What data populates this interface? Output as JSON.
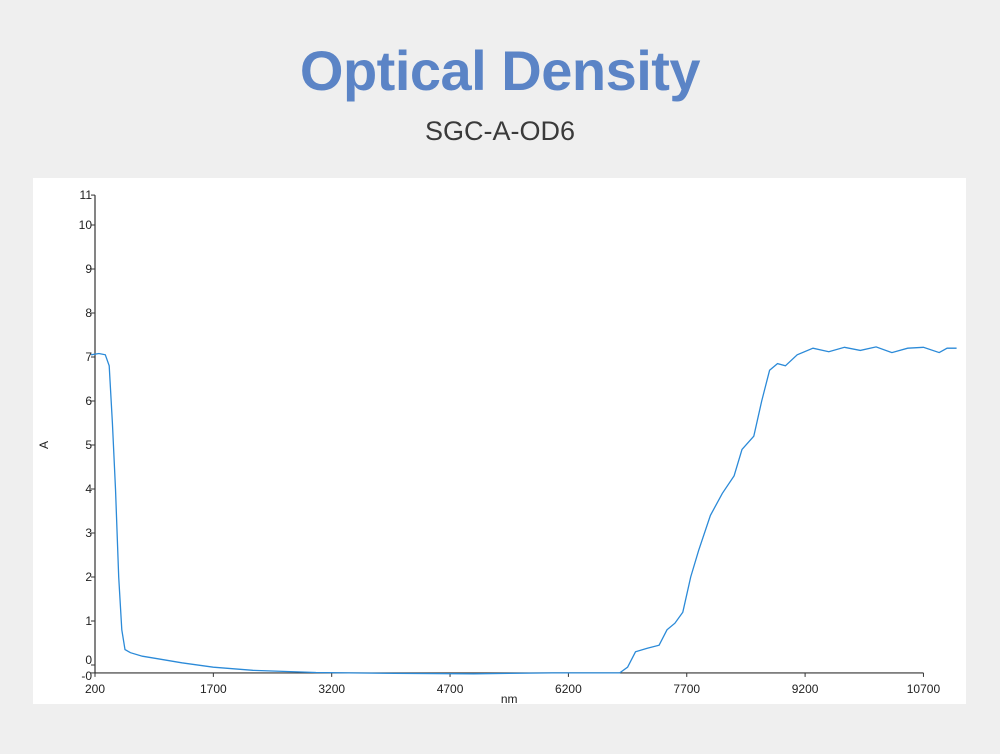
{
  "title": "Optical Density",
  "subtitle": "SGC-A-OD6",
  "chart_data": {
    "type": "line",
    "title": "",
    "xlabel": "nm",
    "ylabel": "A",
    "xlim": [
      200,
      10700
    ],
    "ylim": [
      -0.18,
      10.68
    ],
    "grid": false,
    "line_color": "#2b8ad8",
    "x_ticks": [
      200,
      1700,
      3200,
      4700,
      6200,
      7700,
      9200,
      10700
    ],
    "y_ticks": [
      {
        "label": "11",
        "value": 10.68
      },
      {
        "label": "10",
        "value": 10
      },
      {
        "label": "9",
        "value": 9
      },
      {
        "label": "8",
        "value": 8
      },
      {
        "label": "7",
        "value": 7
      },
      {
        "label": "6",
        "value": 6
      },
      {
        "label": "5",
        "value": 5
      },
      {
        "label": "4",
        "value": 4
      },
      {
        "label": "3",
        "value": 3
      },
      {
        "label": "2",
        "value": 2
      },
      {
        "label": "1",
        "value": 1
      },
      {
        "label": "0",
        "value": 0
      },
      {
        "label": "-0",
        "value": -0.18
      }
    ],
    "series": [
      {
        "x": [
          150,
          250,
          330,
          380,
          420,
          460,
          500,
          540,
          580,
          650,
          800,
          1000,
          1300,
          1700,
          2200,
          3000,
          4000,
          5000,
          6000,
          6850,
          6950,
          7050,
          7200,
          7350,
          7450,
          7550,
          7650,
          7750,
          7850,
          8000,
          8150,
          8300,
          8400,
          8550,
          8650,
          8750,
          8850,
          8950,
          9100,
          9300,
          9500,
          9700,
          9900,
          10100,
          10300,
          10500,
          10700,
          10900,
          11000,
          11120
        ],
        "y": [
          7.05,
          7.08,
          7.05,
          6.8,
          5.5,
          4.0,
          2.0,
          0.8,
          0.35,
          0.28,
          0.2,
          0.14,
          0.05,
          -0.05,
          -0.12,
          -0.17,
          -0.19,
          -0.2,
          -0.18,
          -0.18,
          -0.05,
          0.3,
          0.38,
          0.45,
          0.8,
          0.95,
          1.2,
          2.0,
          2.6,
          3.4,
          3.9,
          4.3,
          4.9,
          5.2,
          6.0,
          6.7,
          6.85,
          6.8,
          7.05,
          7.2,
          7.12,
          7.22,
          7.15,
          7.23,
          7.1,
          7.2,
          7.22,
          7.1,
          7.2,
          7.2
        ]
      }
    ]
  }
}
